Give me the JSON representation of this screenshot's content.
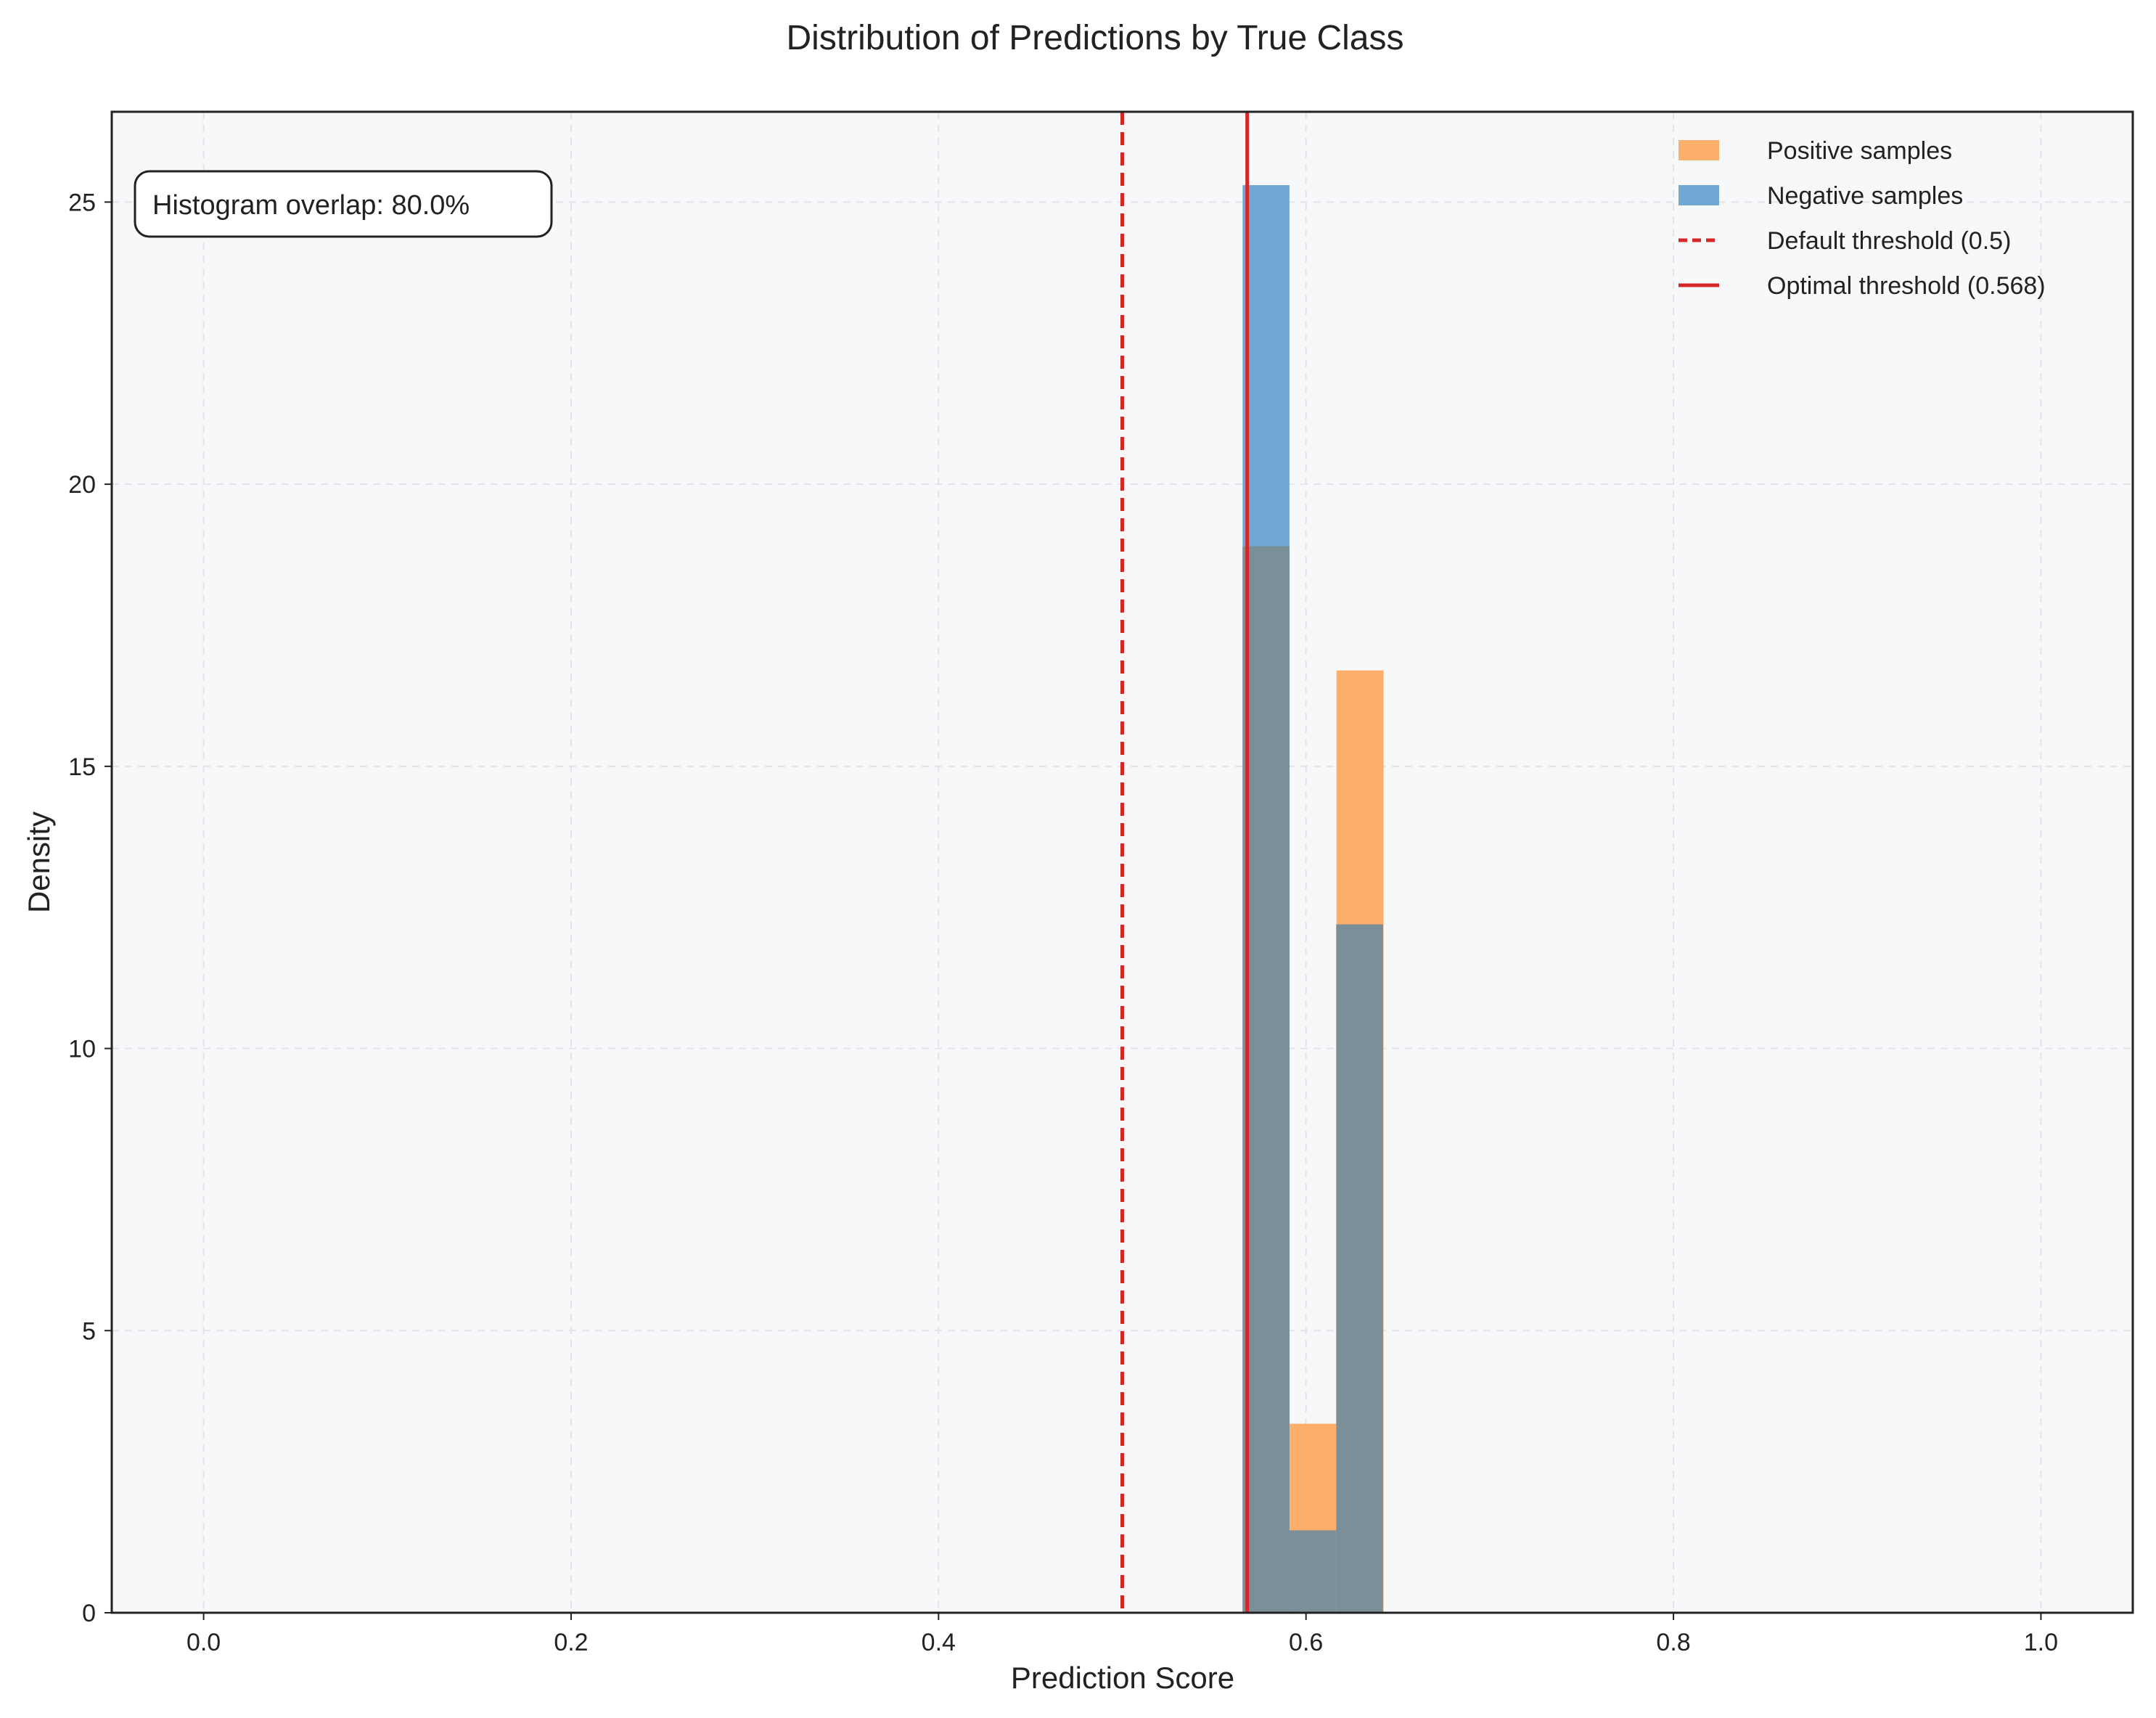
{
  "chart_data": {
    "type": "bar",
    "title": "Distribution of Predictions by True Class",
    "xlabel": "Prediction Score",
    "ylabel": "Density",
    "xlim": [
      -0.05,
      1.05
    ],
    "ylim": [
      0,
      26.6
    ],
    "xticks": [
      {
        "value": 0.0,
        "label": "0.0"
      },
      {
        "value": 0.2,
        "label": "0.2"
      },
      {
        "value": 0.4,
        "label": "0.4"
      },
      {
        "value": 0.6,
        "label": "0.6"
      },
      {
        "value": 0.8,
        "label": "0.8"
      },
      {
        "value": 1.0,
        "label": "1.0"
      }
    ],
    "yticks": [
      {
        "value": 0,
        "label": "0"
      },
      {
        "value": 5,
        "label": "5"
      },
      {
        "value": 10,
        "label": "10"
      },
      {
        "value": 15,
        "label": "15"
      },
      {
        "value": 20,
        "label": "20"
      },
      {
        "value": 25,
        "label": "25"
      }
    ],
    "grid": true,
    "legend_position": "top-right",
    "series": [
      {
        "name": "Positive samples",
        "color": "#fdae6b",
        "bins": [
          {
            "x0": 0.5655,
            "x1": 0.5911,
            "value": 18.9
          },
          {
            "x0": 0.5911,
            "x1": 0.6166,
            "value": 3.35
          },
          {
            "x0": 0.6166,
            "x1": 0.6422,
            "value": 16.7
          }
        ]
      },
      {
        "name": "Negative samples",
        "color": "#6fa8d3",
        "bins": [
          {
            "x0": 0.5655,
            "x1": 0.591,
            "value": 25.3
          },
          {
            "x0": 0.591,
            "x1": 0.6164,
            "value": 1.46
          },
          {
            "x0": 0.6164,
            "x1": 0.6419,
            "value": 12.2
          }
        ]
      }
    ],
    "overlap_color": "#7b8f99",
    "reference_lines": [
      {
        "name": "Default threshold (0.5)",
        "x": 0.5,
        "style": "dashed",
        "color": "#d62728"
      },
      {
        "name": "Optimal threshold (0.568)",
        "x": 0.568,
        "style": "solid",
        "color": "#d62728"
      }
    ],
    "annotation": "Histogram overlap: 80.0%",
    "plot_background": "#f7f8fa"
  }
}
